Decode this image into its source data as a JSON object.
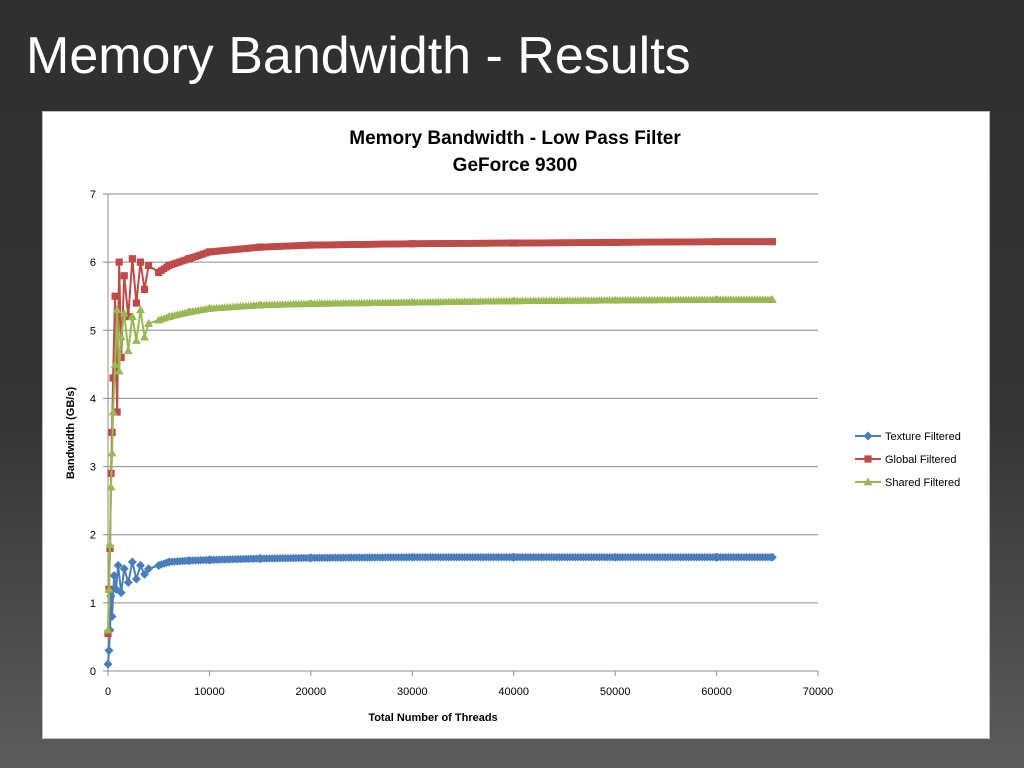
{
  "slide": {
    "title": "Memory Bandwidth - Results"
  },
  "chart_data": {
    "type": "line",
    "title": "Memory Bandwidth - Low Pass Filter",
    "subtitle": "GeForce 9300",
    "xlabel": "Total Number of Threads",
    "ylabel": "Bandwidth (GB/s)",
    "xlim": [
      0,
      70000
    ],
    "ylim": [
      0,
      7
    ],
    "xticks": [
      0,
      10000,
      20000,
      30000,
      40000,
      50000,
      60000,
      70000
    ],
    "yticks": [
      0,
      1,
      2,
      3,
      4,
      5,
      6,
      7
    ],
    "grid": "horizontal",
    "legend_position": "right",
    "series": [
      {
        "name": "Texture Filtered",
        "color": "#4a7ebb",
        "marker": "diamond",
        "x": [
          0,
          100,
          200,
          300,
          400,
          600,
          800,
          1000,
          1300,
          1600,
          2000,
          2400,
          2800,
          3200,
          3600,
          4000,
          5000,
          6000,
          8000,
          10000,
          15000,
          20000,
          30000,
          40000,
          50000,
          60000,
          65500
        ],
        "y": [
          0.1,
          0.3,
          0.6,
          1.1,
          0.8,
          1.4,
          1.2,
          1.55,
          1.15,
          1.5,
          1.3,
          1.6,
          1.35,
          1.55,
          1.42,
          1.5,
          1.55,
          1.6,
          1.62,
          1.63,
          1.65,
          1.66,
          1.67,
          1.67,
          1.67,
          1.67,
          1.67
        ]
      },
      {
        "name": "Global Filtered",
        "color": "#be4b48",
        "marker": "square",
        "x": [
          0,
          100,
          200,
          300,
          400,
          500,
          700,
          900,
          1100,
          1300,
          1600,
          2000,
          2400,
          2800,
          3200,
          3600,
          4000,
          5000,
          6000,
          8000,
          10000,
          15000,
          20000,
          30000,
          40000,
          50000,
          60000,
          65500
        ],
        "y": [
          0.55,
          1.2,
          1.8,
          2.9,
          3.5,
          4.3,
          5.5,
          3.8,
          6.0,
          4.6,
          5.8,
          5.2,
          6.05,
          5.4,
          6.0,
          5.6,
          5.95,
          5.85,
          5.95,
          6.05,
          6.15,
          6.22,
          6.25,
          6.27,
          6.28,
          6.29,
          6.3,
          6.3
        ]
      },
      {
        "name": "Shared Filtered",
        "color": "#98b954",
        "marker": "triangle",
        "x": [
          0,
          100,
          200,
          300,
          400,
          500,
          700,
          900,
          1100,
          1300,
          1600,
          2000,
          2400,
          2800,
          3200,
          3600,
          4000,
          5000,
          6000,
          8000,
          10000,
          15000,
          20000,
          30000,
          40000,
          50000,
          60000,
          65500
        ],
        "y": [
          0.6,
          1.2,
          1.85,
          2.7,
          3.2,
          3.8,
          4.5,
          5.3,
          4.4,
          4.9,
          5.25,
          4.7,
          5.2,
          4.85,
          5.3,
          4.9,
          5.1,
          5.15,
          5.2,
          5.27,
          5.32,
          5.37,
          5.39,
          5.41,
          5.43,
          5.44,
          5.45,
          5.45
        ]
      }
    ]
  }
}
